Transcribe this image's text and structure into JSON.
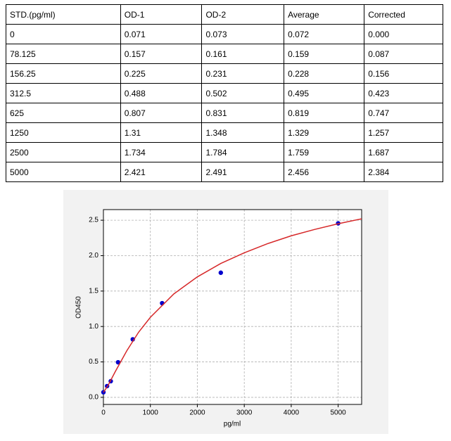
{
  "table": {
    "header": [
      "STD.(pg/ml)",
      "OD-1",
      "OD-2",
      "Average",
      "Corrected"
    ],
    "rows": [
      [
        "0",
        "0.071",
        "0.073",
        "0.072",
        "0.000"
      ],
      [
        "78.125",
        "0.157",
        "0.161",
        "0.159",
        "0.087"
      ],
      [
        "156.25",
        "0.225",
        "0.231",
        "0.228",
        "0.156"
      ],
      [
        "312.5",
        "0.488",
        "0.502",
        "0.495",
        "0.423"
      ],
      [
        "625",
        "0.807",
        "0.831",
        "0.819",
        "0.747"
      ],
      [
        "1250",
        "1.31",
        "1.348",
        "1.329",
        "1.257"
      ],
      [
        "2500",
        "1.734",
        "1.784",
        "1.759",
        "1.687"
      ],
      [
        "5000",
        "2.421",
        "2.491",
        "2.456",
        "2.384"
      ]
    ]
  },
  "chart_data": {
    "type": "scatter",
    "xlabel": "pg/ml",
    "ylabel": "OD450",
    "xlim": [
      0,
      5500
    ],
    "ylim": [
      -0.1,
      2.65
    ],
    "xticks": [
      0,
      1000,
      2000,
      3000,
      4000,
      5000
    ],
    "yticks": [
      {
        "value": 0,
        "label": "0.0"
      },
      0.5,
      {
        "value": 1,
        "label": "1.0"
      },
      1.5,
      {
        "value": 2,
        "label": "2.0"
      },
      2.5
    ],
    "grid": true,
    "series": [
      {
        "type": "scatter",
        "color": "#0000cc",
        "x": [
          0,
          78.125,
          156.25,
          312.5,
          625,
          1250,
          2500,
          5000
        ],
        "values": [
          0.072,
          0.159,
          0.228,
          0.495,
          0.819,
          1.329,
          1.759,
          2.456
        ]
      },
      {
        "type": "line",
        "color": "#d62728",
        "x": [
          0,
          100,
          250,
          500,
          750,
          1000,
          1500,
          2000,
          2500,
          3000,
          3500,
          4000,
          4500,
          5000,
          5500
        ],
        "values": [
          0.07,
          0.17,
          0.36,
          0.66,
          0.92,
          1.13,
          1.46,
          1.7,
          1.89,
          2.04,
          2.17,
          2.28,
          2.37,
          2.45,
          2.52
        ]
      }
    ]
  }
}
